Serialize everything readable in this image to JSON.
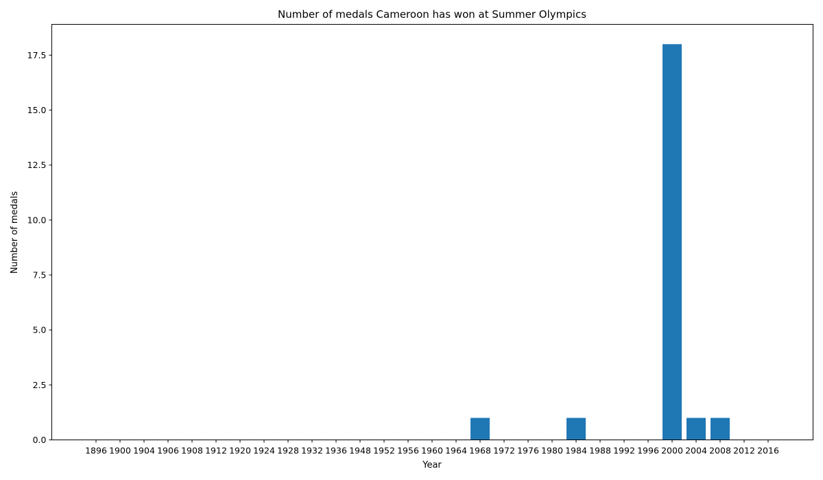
{
  "chart_data": {
    "type": "bar",
    "title": "Number of medals Cameroon has won at Summer Olympics",
    "xlabel": "Year",
    "ylabel": "Number of medals",
    "categories": [
      "1896",
      "1900",
      "1904",
      "1906",
      "1908",
      "1912",
      "1920",
      "1924",
      "1928",
      "1932",
      "1936",
      "1948",
      "1952",
      "1956",
      "1960",
      "1964",
      "1968",
      "1972",
      "1976",
      "1980",
      "1984",
      "1988",
      "1992",
      "1996",
      "2000",
      "2004",
      "2008",
      "2012",
      "2016"
    ],
    "values": [
      0,
      0,
      0,
      0,
      0,
      0,
      0,
      0,
      0,
      0,
      0,
      0,
      0,
      0,
      0,
      0,
      1,
      0,
      0,
      0,
      1,
      0,
      0,
      0,
      18,
      1,
      1,
      0,
      0
    ],
    "ylim": [
      0,
      18.9
    ],
    "yticks": [
      0,
      2.5,
      5,
      7.5,
      10,
      12.5,
      15,
      17.5
    ],
    "ytick_labels": [
      "0.0",
      "2.5",
      "5.0",
      "7.5",
      "10.0",
      "12.5",
      "15.0",
      "17.5"
    ],
    "bar_color": "#1f77b4",
    "grid": false,
    "legend": "none"
  }
}
